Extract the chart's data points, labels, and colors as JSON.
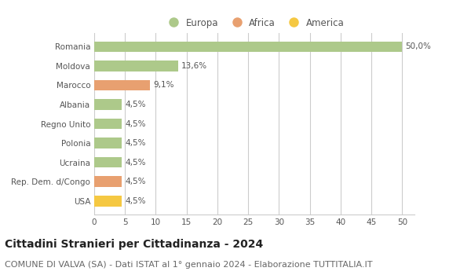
{
  "categories": [
    "Romania",
    "Moldova",
    "Marocco",
    "Albania",
    "Regno Unito",
    "Polonia",
    "Ucraina",
    "Rep. Dem. d/Congo",
    "USA"
  ],
  "values": [
    50.0,
    13.6,
    9.1,
    4.5,
    4.5,
    4.5,
    4.5,
    4.5,
    4.5
  ],
  "labels": [
    "50,0%",
    "13,6%",
    "9,1%",
    "4,5%",
    "4,5%",
    "4,5%",
    "4,5%",
    "4,5%",
    "4,5%"
  ],
  "bar_colors": [
    "#adc98a",
    "#adc98a",
    "#e8a070",
    "#adc98a",
    "#adc98a",
    "#adc98a",
    "#adc98a",
    "#e8a070",
    "#f5c842"
  ],
  "legend_items": [
    {
      "label": "Europa",
      "color": "#adc98a"
    },
    {
      "label": "Africa",
      "color": "#e8a070"
    },
    {
      "label": "America",
      "color": "#f5c842"
    }
  ],
  "xlim": [
    0,
    52
  ],
  "xticks": [
    0,
    5,
    10,
    15,
    20,
    25,
    30,
    35,
    40,
    45,
    50
  ],
  "title": "Cittadini Stranieri per Cittadinanza - 2024",
  "subtitle": "COMUNE DI VALVA (SA) - Dati ISTAT al 1° gennaio 2024 - Elaborazione TUTTITALIA.IT",
  "background_color": "#ffffff",
  "grid_color": "#cccccc",
  "bar_height": 0.55,
  "title_fontsize": 10,
  "subtitle_fontsize": 8,
  "label_fontsize": 7.5,
  "tick_fontsize": 7.5,
  "legend_fontsize": 8.5
}
